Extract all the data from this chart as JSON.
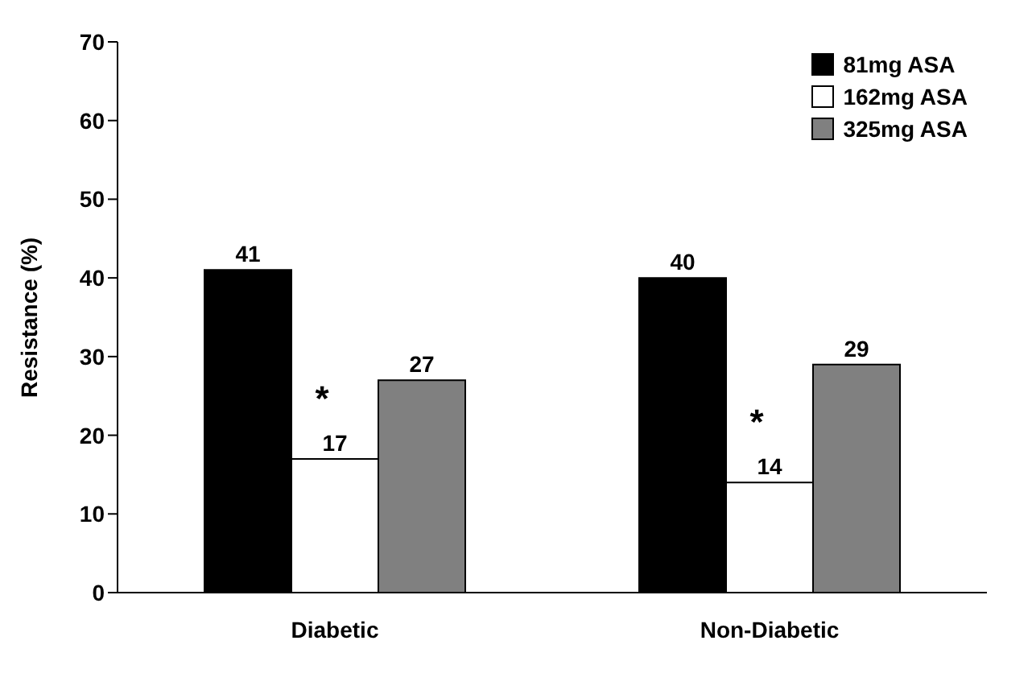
{
  "chart_data": {
    "type": "bar",
    "ylabel": "Resistance (%)",
    "categories": [
      "Diabetic",
      "Non-Diabetic"
    ],
    "series": [
      {
        "name": "81mg ASA",
        "color": "#000000",
        "values": [
          41,
          40
        ]
      },
      {
        "name": "162mg ASA",
        "color": "#ffffff",
        "values": [
          17,
          14
        ]
      },
      {
        "name": "325mg ASA",
        "color": "#808080",
        "values": [
          27,
          29
        ]
      }
    ],
    "ylim": [
      0,
      70
    ],
    "yticks": [
      0,
      10,
      20,
      30,
      40,
      50,
      60,
      70
    ],
    "legend": "top right",
    "data_labels": true,
    "annotations": [
      "*",
      "*"
    ]
  }
}
